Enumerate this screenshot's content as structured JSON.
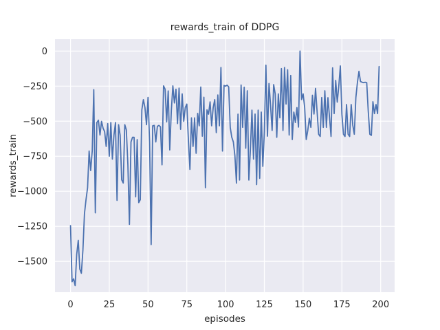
{
  "figure": {
    "background": "#ffffff"
  },
  "chart_data": {
    "type": "line",
    "title": "rewards_train of DDPG",
    "xlabel": "episodes",
    "ylabel": "rewards_train",
    "grid": true,
    "legend": "none",
    "xlim": [
      -10,
      209
    ],
    "ylim": [
      -1720,
      85
    ],
    "x_ticks": [
      {
        "value": 0,
        "label": "0"
      },
      {
        "value": 25,
        "label": "25"
      },
      {
        "value": 50,
        "label": "50"
      },
      {
        "value": 75,
        "label": "75"
      },
      {
        "value": 100,
        "label": "100"
      },
      {
        "value": 125,
        "label": "125"
      },
      {
        "value": 150,
        "label": "150"
      },
      {
        "value": 175,
        "label": "175"
      },
      {
        "value": 200,
        "label": "200"
      }
    ],
    "y_ticks": [
      {
        "value": 0,
        "label": "0"
      },
      {
        "value": -250,
        "label": "−250"
      },
      {
        "value": -500,
        "label": "−500"
      },
      {
        "value": -750,
        "label": "−750"
      },
      {
        "value": -1000,
        "label": "−1000"
      },
      {
        "value": -1250,
        "label": "−1250"
      },
      {
        "value": -1500,
        "label": "−1500"
      }
    ],
    "colors": {
      "line": "#4c72b0",
      "axes_bg": "#eaeaf2",
      "grid": "#ffffff",
      "text": "#262626"
    },
    "series": [
      {
        "name": "rewards_train",
        "x_start": 0,
        "x_step": 1,
        "values": [
          -1245,
          -1645,
          -1625,
          -1673,
          -1450,
          -1350,
          -1555,
          -1585,
          -1420,
          -1160,
          -1060,
          -975,
          -713,
          -852,
          -713,
          -275,
          -1154,
          -509,
          -493,
          -599,
          -501,
          -550,
          -574,
          -680,
          -517,
          -750,
          -510,
          -771,
          -600,
          -510,
          -1065,
          -525,
          -600,
          -918,
          -941,
          -525,
          -562,
          -811,
          -1236,
          -648,
          -615,
          -615,
          -1040,
          -631,
          -1081,
          -1060,
          -419,
          -346,
          -403,
          -525,
          -330,
          -650,
          -1380,
          -533,
          -530,
          -648,
          -537,
          -530,
          -540,
          -811,
          -248,
          -272,
          -505,
          -284,
          -705,
          -427,
          -248,
          -370,
          -272,
          -517,
          -264,
          -558,
          -305,
          -501,
          -403,
          -378,
          -631,
          -844,
          -476,
          -680,
          -476,
          -729,
          -444,
          -533,
          -256,
          -607,
          -329,
          -975,
          -419,
          -450,
          -362,
          -533,
          -403,
          -346,
          -582,
          -313,
          -533,
          -117,
          -713,
          -245,
          -250,
          -243,
          -255,
          -544,
          -615,
          -648,
          -746,
          -942,
          -450,
          -920,
          -242,
          -544,
          -257,
          -693,
          -283,
          -920,
          -700,
          -421,
          -771,
          -449,
          -952,
          -421,
          -908,
          -435,
          -822,
          -574,
          -100,
          -607,
          -231,
          -386,
          -566,
          -239,
          -305,
          -615,
          -305,
          -476,
          -125,
          -566,
          -117,
          -378,
          -133,
          -599,
          -174,
          -631,
          -435,
          -509,
          -403,
          -542,
          0,
          -346,
          -305,
          -403,
          -631,
          -566,
          -479,
          -544,
          -315,
          -449,
          -266,
          -430,
          -593,
          -609,
          -331,
          -544,
          -283,
          -544,
          -332,
          -470,
          -609,
          -119,
          -446,
          -209,
          -364,
          -250,
          -106,
          -450,
          -593,
          -609,
          -381,
          -593,
          -609,
          -381,
          -528,
          -593,
          -332,
          -225,
          -144,
          -217,
          -222,
          -225,
          -222,
          -225,
          -430,
          -593,
          -601,
          -361,
          -446,
          -381,
          -446,
          -110
        ]
      }
    ]
  }
}
